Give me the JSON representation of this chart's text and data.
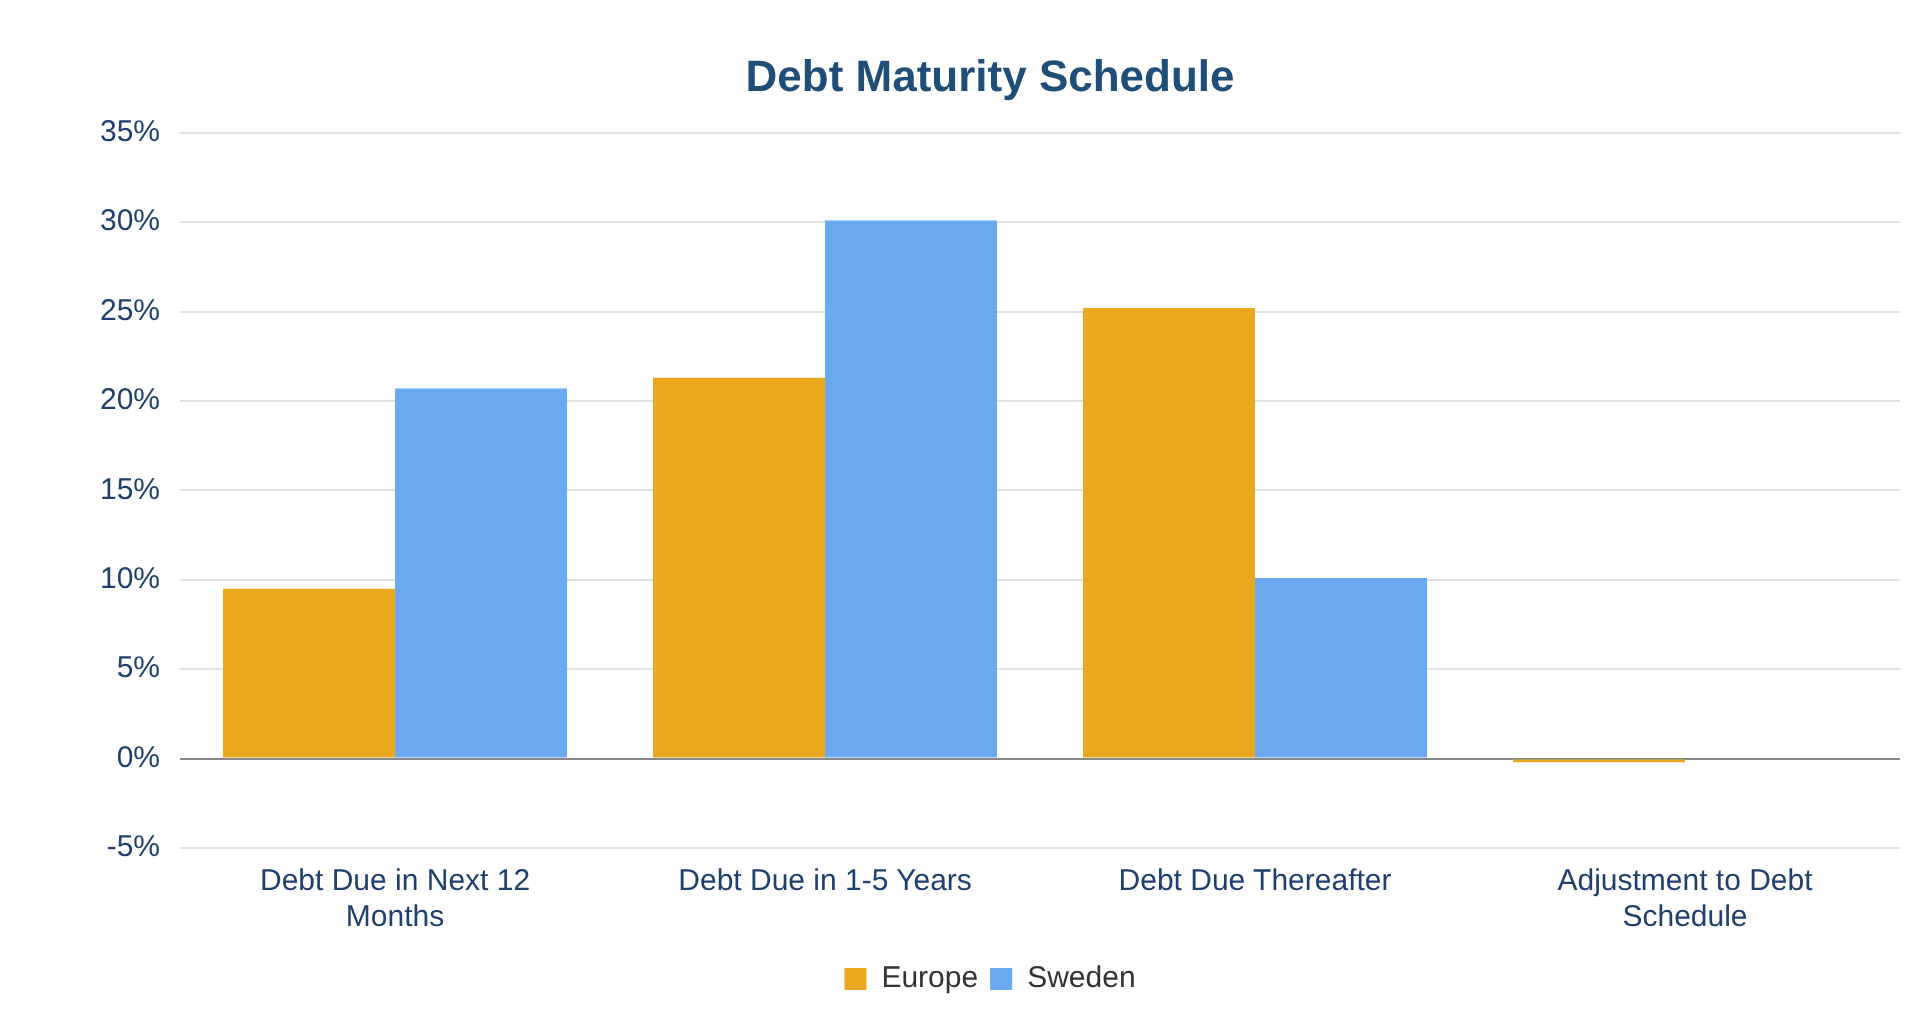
{
  "chart_data": {
    "type": "bar",
    "title": "Debt Maturity Schedule",
    "categories": [
      "Debt Due in Next 12 Months",
      "Debt Due in 1-5 Years",
      "Debt Due Thereafter",
      "Adjustment to Debt Schedule"
    ],
    "series": [
      {
        "name": "Europe",
        "color": "#e9a820",
        "values": [
          9.5,
          21.3,
          25.2,
          -0.2
        ]
      },
      {
        "name": "Sweden",
        "color": "#6aa9f0",
        "values": [
          20.7,
          30.1,
          10.1,
          0
        ]
      }
    ],
    "ylim": [
      -5,
      35
    ],
    "yticks": [
      {
        "value": -5,
        "label": "-5%"
      },
      {
        "value": 0,
        "label": "0%"
      },
      {
        "value": 5,
        "label": "5%"
      },
      {
        "value": 10,
        "label": "10%"
      },
      {
        "value": 15,
        "label": "15%"
      },
      {
        "value": 20,
        "label": "20%"
      },
      {
        "value": 25,
        "label": "25%"
      },
      {
        "value": 30,
        "label": "30%"
      },
      {
        "value": 35,
        "label": "35%"
      }
    ],
    "grid": "y",
    "legend": "bottom"
  }
}
